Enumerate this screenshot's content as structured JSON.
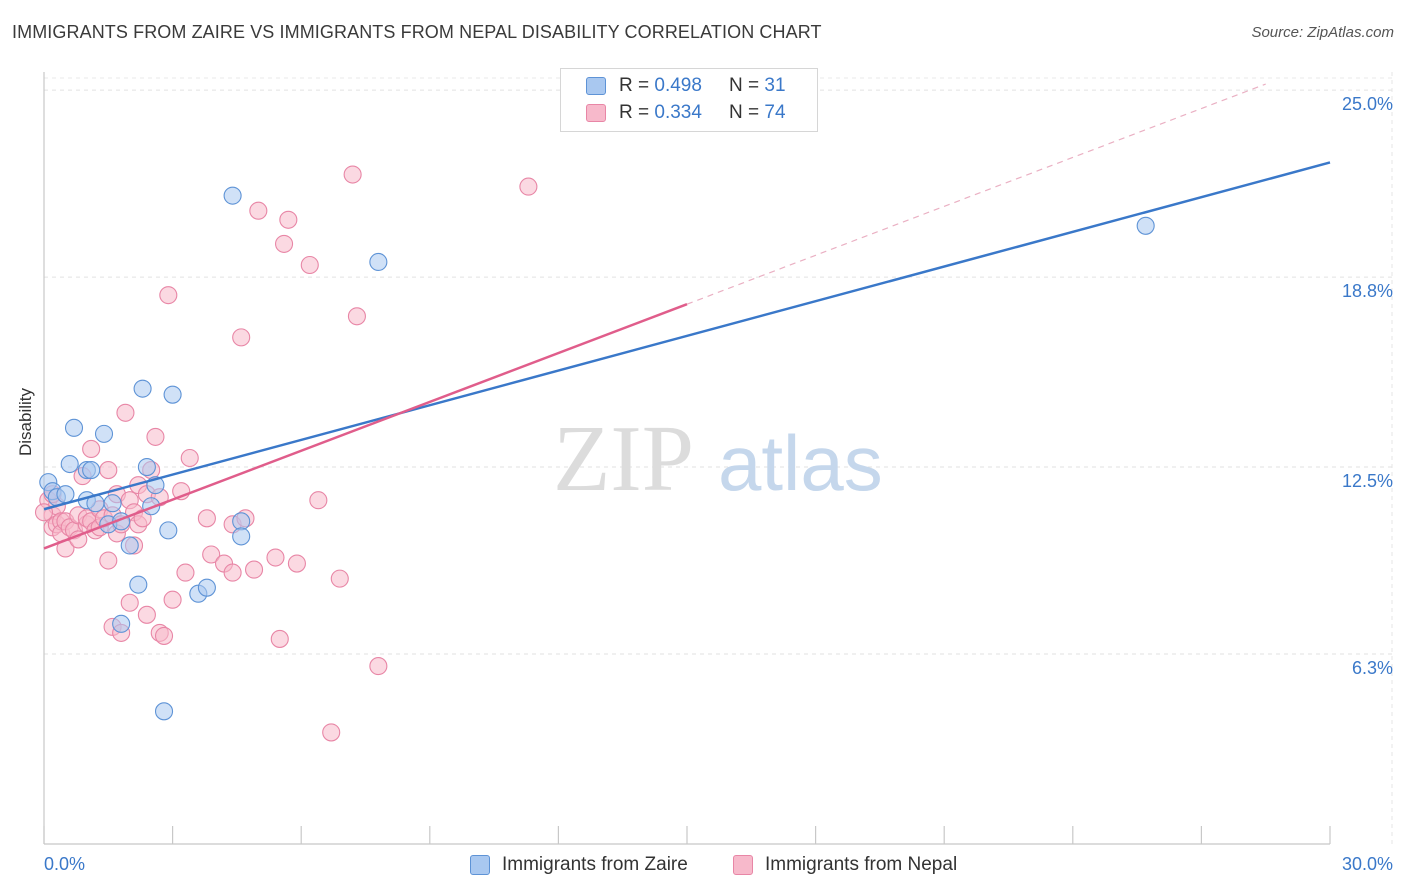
{
  "title": "IMMIGRANTS FROM ZAIRE VS IMMIGRANTS FROM NEPAL DISABILITY CORRELATION CHART",
  "source": "Source: ZipAtlas.com",
  "watermark": {
    "part1": "ZIP",
    "part2": "atlas"
  },
  "legend": {
    "r_label": "R =",
    "n_label": "N =",
    "series": [
      {
        "name": "Immigrants from Zaire",
        "r": "0.498",
        "n": "31",
        "fill": "#a9c8f0",
        "stroke": "#5e93d6"
      },
      {
        "name": "Immigrants from Nepal",
        "r": "0.334",
        "n": "74",
        "fill": "#f7b9cb",
        "stroke": "#e886a6"
      }
    ]
  },
  "chart_data": {
    "type": "scatter",
    "title": "IMMIGRANTS FROM ZAIRE VS IMMIGRANTS FROM NEPAL DISABILITY CORRELATION CHART",
    "xlabel": "",
    "ylabel": "Disability",
    "xlim": [
      0,
      30
    ],
    "ylim": [
      0,
      25.6
    ],
    "x_tick_labels": [
      {
        "value": 0,
        "label": "0.0%"
      },
      {
        "value": 30,
        "label": "30.0%"
      }
    ],
    "y_ticks": [
      {
        "value": 6.3,
        "label": "6.3%"
      },
      {
        "value": 12.5,
        "label": "12.5%"
      },
      {
        "value": 18.8,
        "label": "18.8%"
      },
      {
        "value": 25.0,
        "label": "25.0%"
      }
    ],
    "grid": true,
    "series": [
      {
        "name": "Immigrants from Zaire",
        "color": "#3a78c9",
        "points": [
          [
            0.1,
            12.0
          ],
          [
            0.2,
            11.7
          ],
          [
            0.3,
            11.5
          ],
          [
            0.5,
            11.6
          ],
          [
            0.6,
            12.6
          ],
          [
            0.7,
            13.8
          ],
          [
            1.0,
            12.4
          ],
          [
            1.0,
            11.4
          ],
          [
            1.1,
            12.4
          ],
          [
            1.2,
            11.3
          ],
          [
            1.4,
            13.6
          ],
          [
            1.5,
            10.6
          ],
          [
            1.6,
            11.3
          ],
          [
            1.8,
            10.7
          ],
          [
            1.8,
            7.3
          ],
          [
            2.0,
            9.9
          ],
          [
            2.2,
            8.6
          ],
          [
            2.3,
            15.1
          ],
          [
            2.4,
            12.5
          ],
          [
            2.5,
            11.2
          ],
          [
            2.6,
            11.9
          ],
          [
            2.8,
            4.4
          ],
          [
            2.9,
            10.4
          ],
          [
            3.0,
            14.9
          ],
          [
            3.6,
            8.3
          ],
          [
            3.8,
            8.5
          ],
          [
            4.4,
            21.5
          ],
          [
            4.6,
            10.7
          ],
          [
            4.6,
            10.2
          ],
          [
            7.8,
            19.3
          ],
          [
            25.7,
            20.5
          ]
        ],
        "trend": {
          "x": [
            0,
            30
          ],
          "y": [
            11.1,
            22.6
          ],
          "style": "solid"
        }
      },
      {
        "name": "Immigrants from Nepal",
        "color": "#e05d8b",
        "points": [
          [
            0.1,
            11.4
          ],
          [
            0.2,
            10.9
          ],
          [
            0.2,
            10.5
          ],
          [
            0.3,
            11.2
          ],
          [
            0.3,
            10.6
          ],
          [
            0.4,
            10.7
          ],
          [
            0.4,
            10.3
          ],
          [
            0.5,
            10.7
          ],
          [
            0.5,
            9.8
          ],
          [
            0.6,
            10.5
          ],
          [
            0.7,
            10.4
          ],
          [
            0.8,
            10.9
          ],
          [
            0.8,
            10.1
          ],
          [
            0.9,
            12.2
          ],
          [
            1.0,
            10.6
          ],
          [
            1.0,
            10.8
          ],
          [
            1.1,
            10.7
          ],
          [
            1.1,
            13.1
          ],
          [
            1.2,
            10.4
          ],
          [
            1.3,
            10.5
          ],
          [
            1.3,
            11.1
          ],
          [
            1.4,
            10.8
          ],
          [
            1.5,
            12.4
          ],
          [
            1.5,
            9.4
          ],
          [
            1.6,
            10.9
          ],
          [
            1.6,
            7.2
          ],
          [
            1.7,
            11.6
          ],
          [
            1.7,
            10.3
          ],
          [
            1.8,
            10.6
          ],
          [
            1.8,
            7.0
          ],
          [
            1.9,
            14.3
          ],
          [
            2.0,
            11.4
          ],
          [
            2.0,
            8.0
          ],
          [
            2.1,
            11.0
          ],
          [
            2.1,
            9.9
          ],
          [
            2.2,
            10.6
          ],
          [
            2.2,
            11.9
          ],
          [
            2.3,
            10.8
          ],
          [
            2.4,
            11.6
          ],
          [
            2.4,
            7.6
          ],
          [
            2.5,
            12.4
          ],
          [
            2.6,
            13.5
          ],
          [
            2.7,
            11.5
          ],
          [
            2.7,
            7.0
          ],
          [
            2.8,
            6.9
          ],
          [
            2.9,
            18.2
          ],
          [
            3.0,
            8.1
          ],
          [
            3.2,
            11.7
          ],
          [
            3.3,
            9.0
          ],
          [
            3.4,
            12.8
          ],
          [
            3.8,
            10.8
          ],
          [
            3.9,
            9.6
          ],
          [
            4.2,
            9.3
          ],
          [
            4.4,
            10.6
          ],
          [
            4.4,
            9.0
          ],
          [
            4.6,
            16.8
          ],
          [
            4.7,
            10.8
          ],
          [
            4.9,
            9.1
          ],
          [
            5.0,
            21.0
          ],
          [
            5.4,
            9.5
          ],
          [
            5.5,
            6.8
          ],
          [
            5.6,
            19.9
          ],
          [
            5.7,
            20.7
          ],
          [
            5.9,
            9.3
          ],
          [
            6.2,
            19.2
          ],
          [
            6.4,
            11.4
          ],
          [
            6.7,
            3.7
          ],
          [
            6.9,
            8.8
          ],
          [
            7.2,
            22.2
          ],
          [
            7.3,
            17.5
          ],
          [
            7.8,
            5.9
          ],
          [
            11.3,
            21.8
          ],
          [
            0.0,
            11.0
          ],
          [
            0.2,
            11.6
          ]
        ],
        "trend": {
          "x": [
            0,
            15
          ],
          "y": [
            9.8,
            17.9
          ],
          "style": "solid"
        },
        "trend_extension": {
          "x": [
            15,
            28.5
          ],
          "y": [
            17.9,
            25.2
          ],
          "style": "dashed"
        }
      }
    ]
  }
}
